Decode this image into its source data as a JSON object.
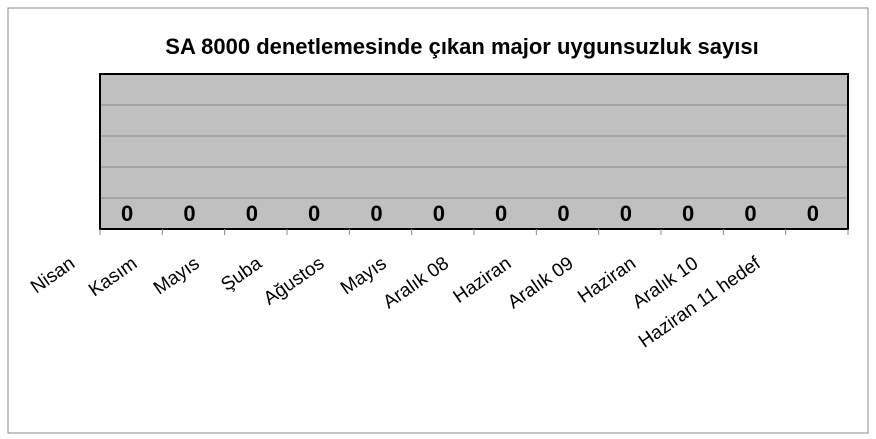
{
  "chart_data": {
    "type": "bar",
    "title": "SA 8000 denetlemesinde çıkan major uygunsuzluk sayısı",
    "categories": [
      "Nisan",
      "Kasım",
      "Mayıs",
      "Şuba",
      "Ağustos",
      "Mayıs",
      "Aralık 08",
      "Haziran",
      "Aralık 09",
      "Haziran",
      "Aralık 10",
      "Haziran 11 hedef"
    ],
    "values": [
      0,
      0,
      0,
      0,
      0,
      0,
      0,
      0,
      0,
      0,
      0,
      0
    ],
    "color": "#4f81bd",
    "ylim": [
      0,
      5
    ],
    "yticks": [
      0,
      1,
      2,
      3,
      4,
      5
    ],
    "grid": true
  }
}
